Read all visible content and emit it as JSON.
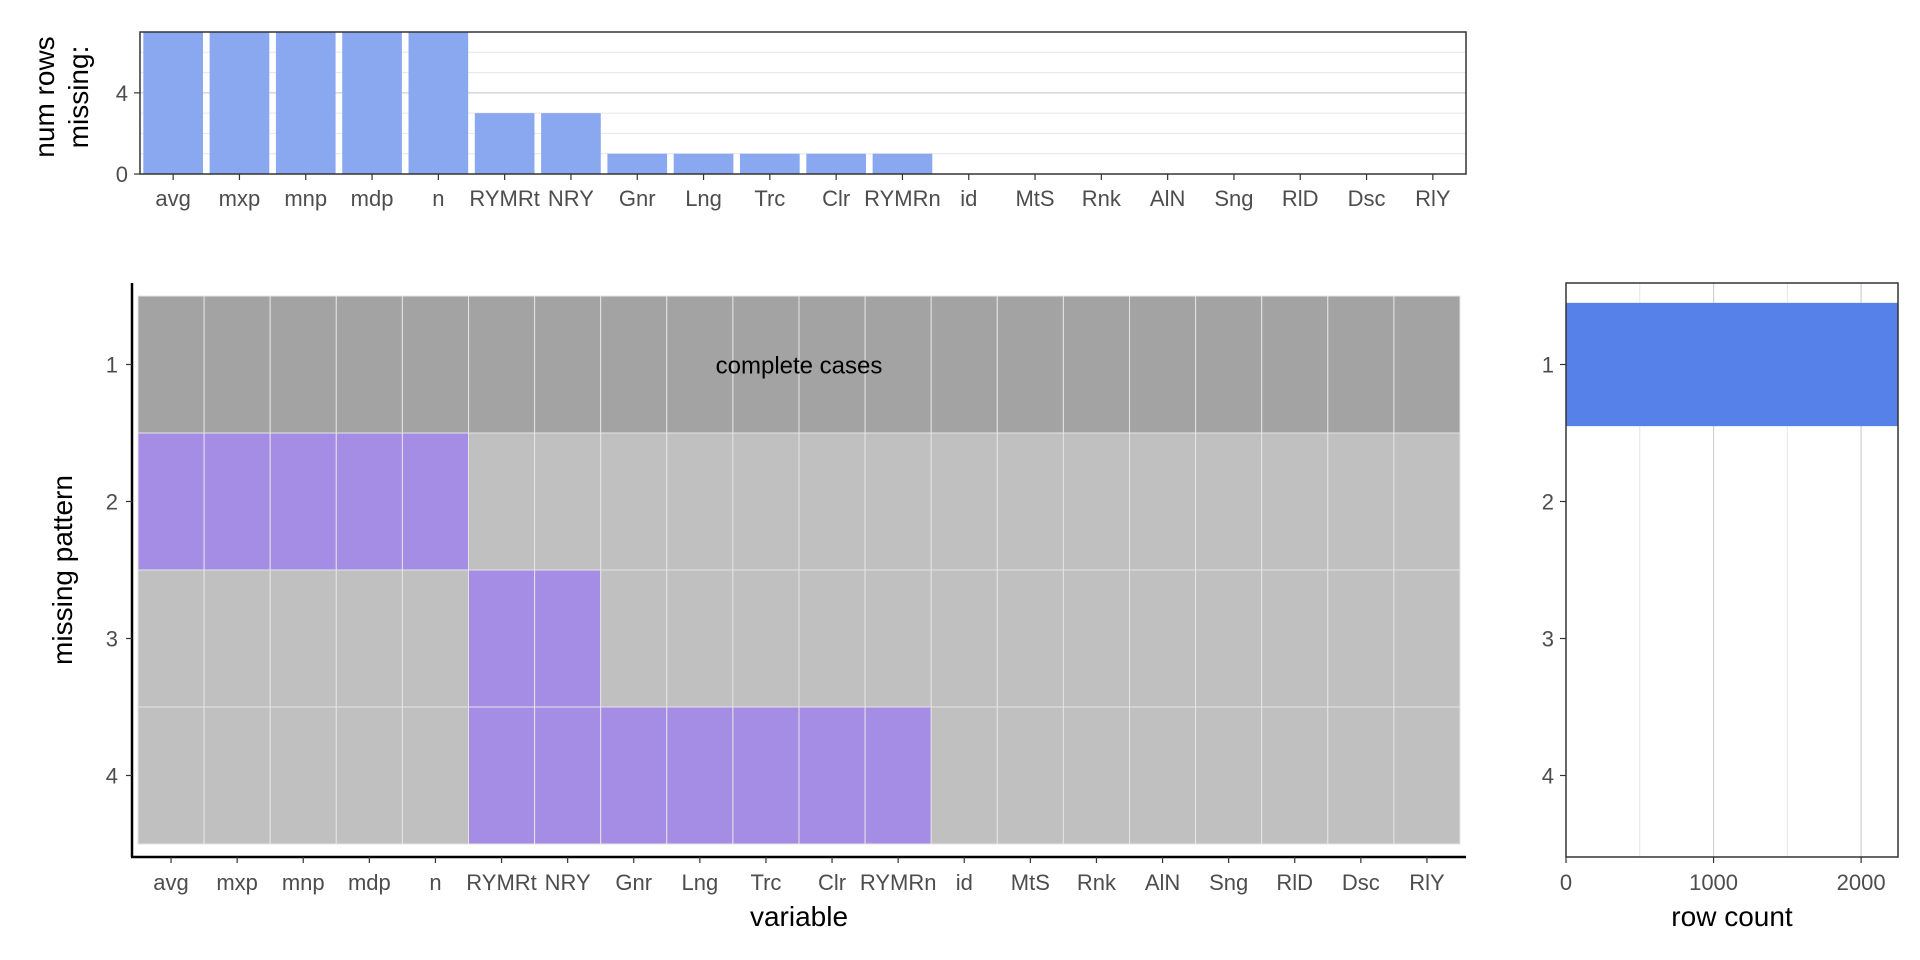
{
  "chart_data": [
    {
      "type": "bar",
      "panel": "missing-count",
      "categories": [
        "avg",
        "mxp",
        "mnp",
        "mdp",
        "n",
        "RYMRt",
        "NRY",
        "Gnr",
        "Lng",
        "Trc",
        "Clr",
        "RYMRn",
        "id",
        "MtS",
        "Rnk",
        "AlN",
        "Sng",
        "RlD",
        "Dsc",
        "RlY"
      ],
      "values": [
        7,
        7,
        7,
        7,
        7,
        3,
        3,
        1,
        1,
        1,
        1,
        1,
        0,
        0,
        0,
        0,
        0,
        0,
        0,
        0
      ],
      "ylabel_lines": [
        "num rows",
        "missing:"
      ],
      "ylim": [
        0,
        7
      ],
      "yticks": [
        0,
        4
      ],
      "grid": true,
      "bar_color": "#8aa8f0"
    },
    {
      "type": "heatmap",
      "panel": "missing-pattern",
      "x_categories": [
        "avg",
        "mxp",
        "mnp",
        "mdp",
        "n",
        "RYMRt",
        "NRY",
        "Gnr",
        "Lng",
        "Trc",
        "Clr",
        "RYMRn",
        "id",
        "MtS",
        "Rnk",
        "AlN",
        "Sng",
        "RlD",
        "Dsc",
        "RlY"
      ],
      "y_categories": [
        "1",
        "2",
        "3",
        "4"
      ],
      "patterns": [
        [
          0,
          0,
          0,
          0,
          0,
          0,
          0,
          0,
          0,
          0,
          0,
          0,
          0,
          0,
          0,
          0,
          0,
          0,
          0,
          0
        ],
        [
          1,
          1,
          1,
          1,
          1,
          0,
          0,
          0,
          0,
          0,
          0,
          0,
          0,
          0,
          0,
          0,
          0,
          0,
          0,
          0
        ],
        [
          0,
          0,
          0,
          0,
          0,
          1,
          1,
          0,
          0,
          0,
          0,
          0,
          0,
          0,
          0,
          0,
          0,
          0,
          0,
          0
        ],
        [
          0,
          0,
          0,
          0,
          0,
          1,
          1,
          1,
          1,
          1,
          1,
          1,
          0,
          0,
          0,
          0,
          0,
          0,
          0,
          0
        ]
      ],
      "complete_row_label": "complete cases",
      "xlabel": "variable",
      "ylabel": "missing pattern",
      "colors": {
        "complete": "#a3a3a3",
        "present": "#c0c0c0",
        "missing": "#a58ce4"
      }
    },
    {
      "type": "bar",
      "orientation": "horizontal",
      "panel": "row-count",
      "categories": [
        "1",
        "2",
        "3",
        "4"
      ],
      "values": [
        2250,
        0,
        0,
        0
      ],
      "xlabel": "row count",
      "xlim": [
        0,
        2250
      ],
      "xticks": [
        0,
        1000,
        2000
      ],
      "grid": true,
      "bar_color": "#5581e8"
    }
  ]
}
